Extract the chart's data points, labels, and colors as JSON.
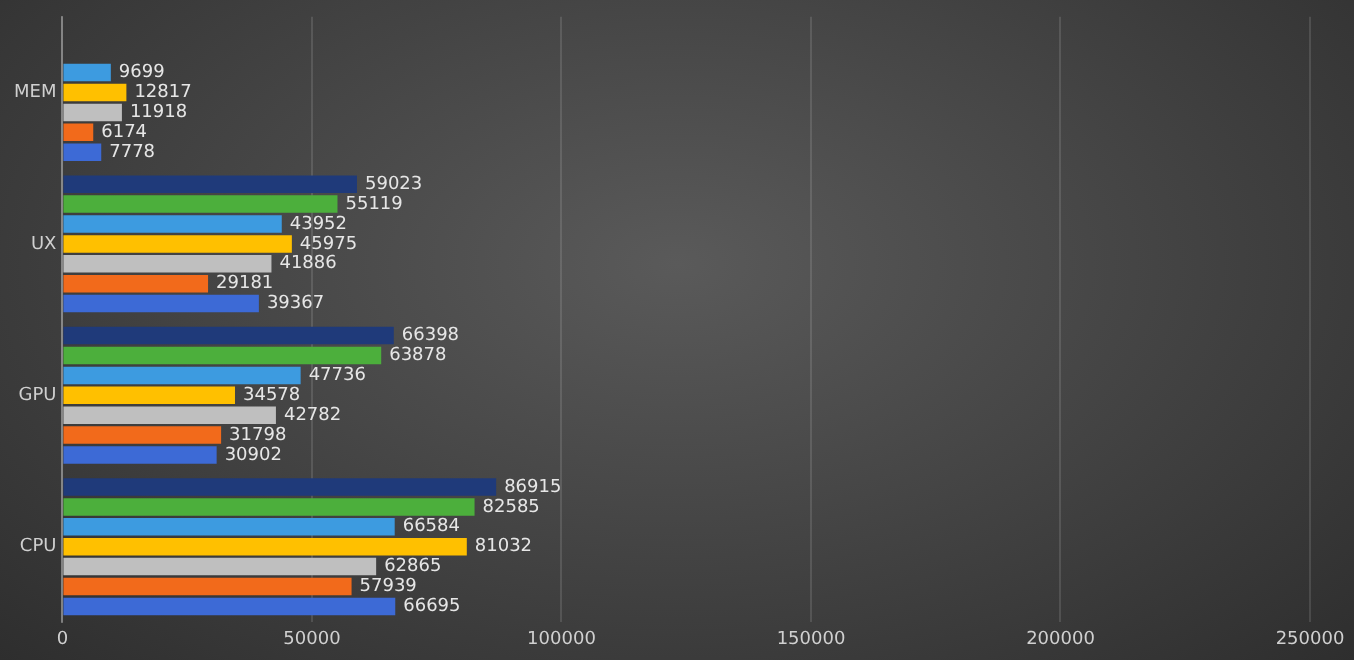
{
  "chart_data": {
    "type": "bar",
    "orientation": "horizontal",
    "categories": [
      "MEM",
      "UX",
      "GPU",
      "CPU"
    ],
    "series": [
      {
        "color": "#1f3a7a",
        "values": [
          null,
          59023,
          66398,
          86915
        ]
      },
      {
        "color": "#4caf3c",
        "values": [
          null,
          55119,
          63878,
          82585
        ]
      },
      {
        "color": "#3d9be0",
        "values": [
          9699,
          43952,
          47736,
          66584
        ]
      },
      {
        "color": "#ffc000",
        "values": [
          12817,
          45975,
          34578,
          81032
        ]
      },
      {
        "color": "#bfbfbf",
        "values": [
          11918,
          41886,
          42782,
          62865
        ]
      },
      {
        "color": "#f26a1b",
        "values": [
          6174,
          29181,
          31798,
          57939
        ]
      },
      {
        "color": "#3d6ad6",
        "values": [
          7778,
          39367,
          30902,
          66695
        ]
      }
    ],
    "xlim": [
      0,
      250000
    ],
    "xticks": [
      0,
      50000,
      100000,
      150000,
      200000,
      250000
    ],
    "grid": "x",
    "legend": false,
    "data_labels": true
  }
}
